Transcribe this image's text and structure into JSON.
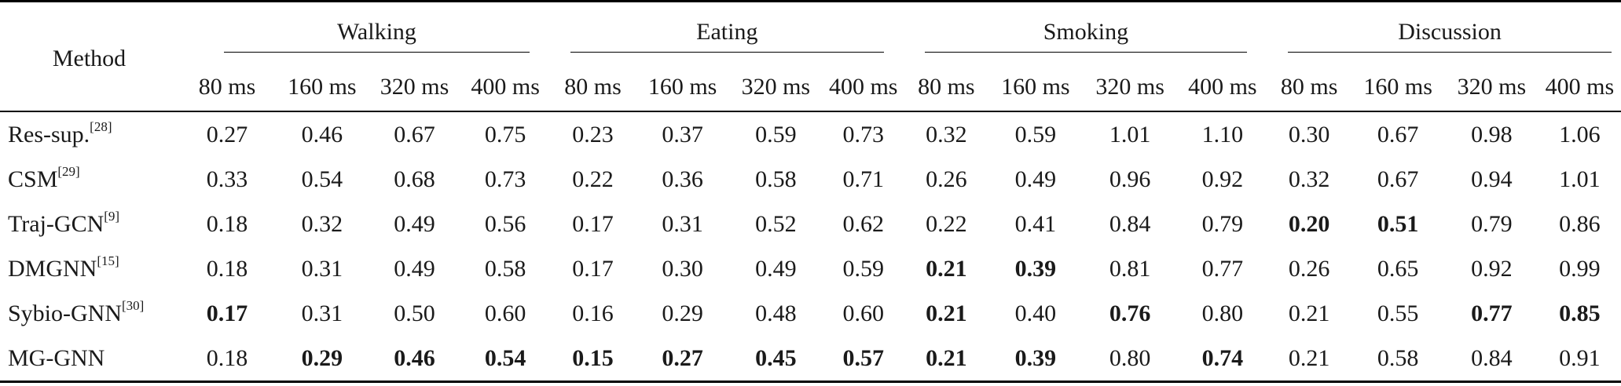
{
  "table": {
    "method_header": "Method",
    "groups": [
      {
        "name": "Walking",
        "horizons": [
          "80 ms",
          "160 ms",
          "320 ms",
          "400 ms"
        ]
      },
      {
        "name": "Eating",
        "horizons": [
          "80 ms",
          "160 ms",
          "320 ms",
          "400 ms"
        ]
      },
      {
        "name": "Smoking",
        "horizons": [
          "80 ms",
          "160 ms",
          "320 ms",
          "400 ms"
        ]
      },
      {
        "name": "Discussion",
        "horizons": [
          "80 ms",
          "160 ms",
          "320 ms",
          "400 ms"
        ]
      }
    ],
    "rows": [
      {
        "method": "Res-sup.",
        "ref": "[28]",
        "values": [
          "0.27",
          "0.46",
          "0.67",
          "0.75",
          "0.23",
          "0.37",
          "0.59",
          "0.73",
          "0.32",
          "0.59",
          "1.01",
          "1.10",
          "0.30",
          "0.67",
          "0.98",
          "1.06"
        ],
        "bold": []
      },
      {
        "method": "CSM",
        "ref": "[29]",
        "values": [
          "0.33",
          "0.54",
          "0.68",
          "0.73",
          "0.22",
          "0.36",
          "0.58",
          "0.71",
          "0.26",
          "0.49",
          "0.96",
          "0.92",
          "0.32",
          "0.67",
          "0.94",
          "1.01"
        ],
        "bold": []
      },
      {
        "method": "Traj-GCN",
        "ref": "[9]",
        "values": [
          "0.18",
          "0.32",
          "0.49",
          "0.56",
          "0.17",
          "0.31",
          "0.52",
          "0.62",
          "0.22",
          "0.41",
          "0.84",
          "0.79",
          "0.20",
          "0.51",
          "0.79",
          "0.86"
        ],
        "bold": [
          12,
          13
        ]
      },
      {
        "method": "DMGNN",
        "ref": "[15]",
        "values": [
          "0.18",
          "0.31",
          "0.49",
          "0.58",
          "0.17",
          "0.30",
          "0.49",
          "0.59",
          "0.21",
          "0.39",
          "0.81",
          "0.77",
          "0.26",
          "0.65",
          "0.92",
          "0.99"
        ],
        "bold": [
          8,
          9
        ]
      },
      {
        "method": "Sybio-GNN",
        "ref": "[30]",
        "values": [
          "0.17",
          "0.31",
          "0.50",
          "0.60",
          "0.16",
          "0.29",
          "0.48",
          "0.60",
          "0.21",
          "0.40",
          "0.76",
          "0.80",
          "0.21",
          "0.55",
          "0.77",
          "0.85"
        ],
        "bold": [
          0,
          8,
          10,
          14,
          15
        ]
      },
      {
        "method": "MG-GNN",
        "ref": "",
        "values": [
          "0.18",
          "0.29",
          "0.46",
          "0.54",
          "0.15",
          "0.27",
          "0.45",
          "0.57",
          "0.21",
          "0.39",
          "0.80",
          "0.74",
          "0.21",
          "0.58",
          "0.84",
          "0.91"
        ],
        "bold": [
          1,
          2,
          3,
          4,
          5,
          6,
          7,
          8,
          9,
          11
        ]
      }
    ]
  }
}
